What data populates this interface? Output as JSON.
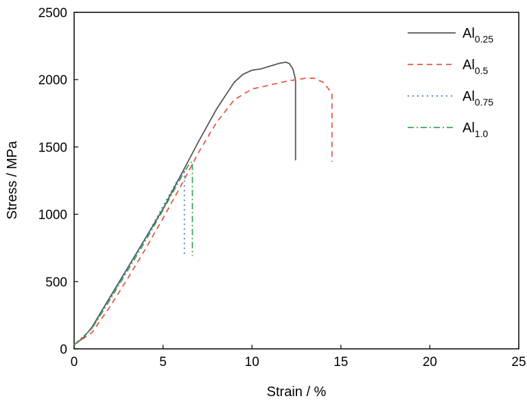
{
  "chart_data": {
    "type": "line",
    "xlabel": "Strain / %",
    "ylabel": "Stress / MPa",
    "xlim": [
      0,
      25
    ],
    "ylim": [
      0,
      2500
    ],
    "xticks": [
      0,
      5,
      10,
      15,
      20,
      25
    ],
    "yticks": [
      0,
      500,
      1000,
      1500,
      2000,
      2500
    ],
    "grid": false,
    "legend_position": "top-right",
    "series": [
      {
        "name": "Al0.25",
        "label_base": "Al",
        "label_sub": "0.25",
        "color": "#555555",
        "dash": "solid",
        "points": [
          [
            0,
            30
          ],
          [
            0.5,
            80
          ],
          [
            1,
            160
          ],
          [
            2,
            380
          ],
          [
            3,
            600
          ],
          [
            4,
            820
          ],
          [
            5,
            1040
          ],
          [
            6,
            1290
          ],
          [
            7,
            1540
          ],
          [
            8,
            1780
          ],
          [
            9,
            1980
          ],
          [
            9.5,
            2040
          ],
          [
            10,
            2070
          ],
          [
            10.5,
            2080
          ],
          [
            11,
            2100
          ],
          [
            11.5,
            2120
          ],
          [
            11.9,
            2130
          ],
          [
            12.1,
            2120
          ],
          [
            12.3,
            2080
          ],
          [
            12.45,
            2000
          ],
          [
            12.45,
            1400
          ]
        ]
      },
      {
        "name": "Al0.5",
        "label_base": "Al",
        "label_sub": "0.5",
        "color": "#e8563f",
        "dash": "dashed",
        "points": [
          [
            0,
            30
          ],
          [
            1,
            120
          ],
          [
            2,
            310
          ],
          [
            3,
            520
          ],
          [
            4,
            740
          ],
          [
            5,
            970
          ],
          [
            6,
            1210
          ],
          [
            7,
            1460
          ],
          [
            8,
            1680
          ],
          [
            9,
            1850
          ],
          [
            10,
            1930
          ],
          [
            11,
            1960
          ],
          [
            12,
            1990
          ],
          [
            13,
            2010
          ],
          [
            13.5,
            2010
          ],
          [
            14,
            1980
          ],
          [
            14.5,
            1900
          ],
          [
            14.5,
            1390
          ]
        ]
      },
      {
        "name": "Al0.75",
        "label_base": "Al",
        "label_sub": "0.75",
        "color": "#3a78c9",
        "dash": "dotted",
        "points": [
          [
            0,
            30
          ],
          [
            1,
            150
          ],
          [
            2,
            370
          ],
          [
            3,
            590
          ],
          [
            4,
            820
          ],
          [
            5,
            1060
          ],
          [
            5.8,
            1250
          ],
          [
            6.2,
            1320
          ],
          [
            6.2,
            700
          ]
        ]
      },
      {
        "name": "Al1.0",
        "label_base": "Al",
        "label_sub": "1.0",
        "color": "#3aa558",
        "dash": "dashdot",
        "points": [
          [
            0,
            30
          ],
          [
            1,
            150
          ],
          [
            2,
            360
          ],
          [
            3,
            580
          ],
          [
            4,
            800
          ],
          [
            5,
            1030
          ],
          [
            6,
            1270
          ],
          [
            6.5,
            1380
          ],
          [
            6.65,
            1390
          ],
          [
            6.65,
            690
          ]
        ]
      }
    ]
  }
}
